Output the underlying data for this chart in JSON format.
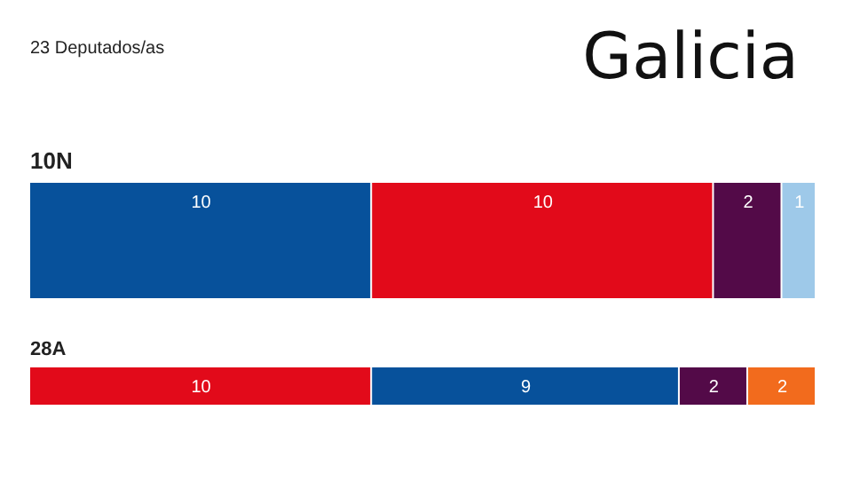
{
  "chart_data": [
    {
      "type": "bar",
      "title": "Galicia",
      "subtitle": "23 Deputados/as",
      "orientation": "horizontal",
      "stacked": true,
      "data_labels": true,
      "xlim": [
        0,
        23
      ],
      "categories": [
        "10N"
      ],
      "series": [
        {
          "color": "#07519b",
          "values": [
            10
          ]
        },
        {
          "color": "#e20a1a",
          "values": [
            10
          ]
        },
        {
          "color": "#530a48",
          "values": [
            2
          ]
        },
        {
          "color": "#9ec9e9",
          "values": [
            1
          ]
        }
      ]
    },
    {
      "type": "bar",
      "orientation": "horizontal",
      "stacked": true,
      "data_labels": true,
      "xlim": [
        0,
        23
      ],
      "categories": [
        "28A"
      ],
      "series": [
        {
          "color": "#e20a1a",
          "values": [
            10
          ]
        },
        {
          "color": "#07519b",
          "values": [
            9
          ]
        },
        {
          "color": "#530a48",
          "values": [
            2
          ]
        },
        {
          "color": "#f26b1d",
          "values": [
            2
          ]
        }
      ]
    }
  ]
}
